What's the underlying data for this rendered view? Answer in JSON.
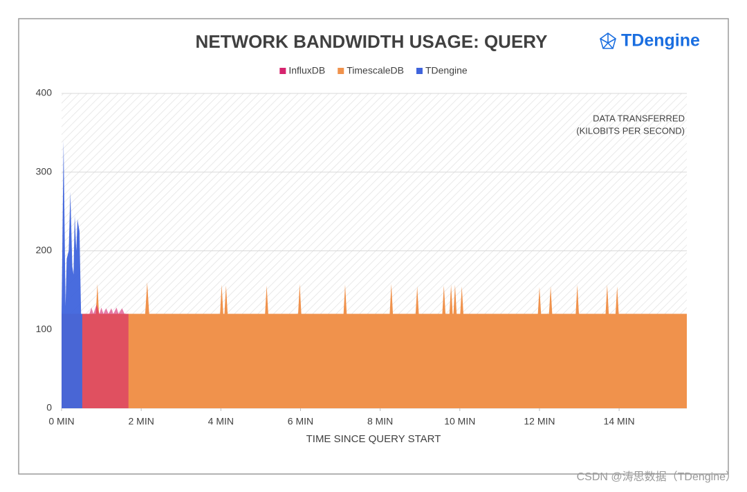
{
  "chart_data": {
    "type": "area",
    "title": "NETWORK BANDWIDTH USAGE: QUERY",
    "logo": "TDengine",
    "x_label": "TIME SINCE QUERY START",
    "annotation": [
      "DATA TRANSFERRED",
      "(KILOBITS PER SECOND)"
    ],
    "legend": "top",
    "grid": true,
    "xlim": [
      0,
      15.7
    ],
    "ylim": [
      0,
      400
    ],
    "xticks": [
      {
        "value": 0,
        "label": "0 MIN"
      },
      {
        "value": 2,
        "label": "2 MIN"
      },
      {
        "value": 4,
        "label": "4 MIN"
      },
      {
        "value": 6,
        "label": "6 MIN"
      },
      {
        "value": 8,
        "label": "8 MIN"
      },
      {
        "value": 10,
        "label": "10 MIN"
      },
      {
        "value": 12,
        "label": "12 MIN"
      },
      {
        "value": 14,
        "label": "14 MIN"
      }
    ],
    "yticks": [
      0,
      100,
      200,
      300,
      400
    ],
    "series": [
      {
        "name": "InfluxDB",
        "color": "#d6246e",
        "x": [
          0.52,
          0.7,
          0.75,
          0.8,
          0.88,
          0.95,
          1.0,
          1.05,
          1.12,
          1.18,
          1.25,
          1.3,
          1.38,
          1.43,
          1.52,
          1.58,
          1.68
        ],
        "values": [
          120,
          120,
          128,
          120,
          132,
          120,
          128,
          120,
          127,
          120,
          127,
          120,
          128,
          120,
          127,
          120,
          120
        ]
      },
      {
        "name": "TimescaleDB",
        "color": "#f0924c",
        "x": [
          0,
          0.86,
          0.9,
          0.94,
          2.1,
          2.15,
          2.2,
          3.98,
          4.02,
          4.06,
          4.09,
          4.13,
          4.17,
          5.11,
          5.15,
          5.19,
          5.94,
          5.98,
          6.02,
          7.08,
          7.12,
          7.16,
          8.24,
          8.28,
          8.32,
          8.89,
          8.93,
          8.97,
          9.56,
          9.6,
          9.64,
          9.74,
          9.78,
          9.82,
          9.84,
          9.88,
          9.92,
          10.01,
          10.05,
          10.09,
          11.96,
          12.0,
          12.04,
          12.24,
          12.28,
          12.32,
          12.91,
          12.95,
          12.99,
          13.66,
          13.7,
          13.74,
          13.91,
          13.95,
          13.99,
          15.7
        ],
        "values": [
          120,
          120,
          158,
          120,
          120,
          160,
          120,
          120,
          157,
          120,
          120,
          156,
          120,
          120,
          156,
          120,
          120,
          158,
          120,
          120,
          157,
          120,
          120,
          158,
          120,
          120,
          155,
          120,
          120,
          156,
          120,
          120,
          157,
          120,
          120,
          157,
          120,
          120,
          155,
          120,
          120,
          154,
          120,
          120,
          155,
          120,
          120,
          157,
          120,
          120,
          157,
          120,
          120,
          155,
          120,
          120
        ]
      },
      {
        "name": "TDengine",
        "color": "#3f64dc",
        "x": [
          0,
          0.05,
          0.1,
          0.13,
          0.18,
          0.22,
          0.27,
          0.3,
          0.33,
          0.37,
          0.4,
          0.45,
          0.49,
          0.52
        ],
        "values": [
          120,
          340,
          130,
          190,
          200,
          275,
          180,
          170,
          245,
          200,
          240,
          225,
          120,
          120
        ]
      }
    ]
  },
  "watermark": "CSDN @涛思数据（TDengine）"
}
